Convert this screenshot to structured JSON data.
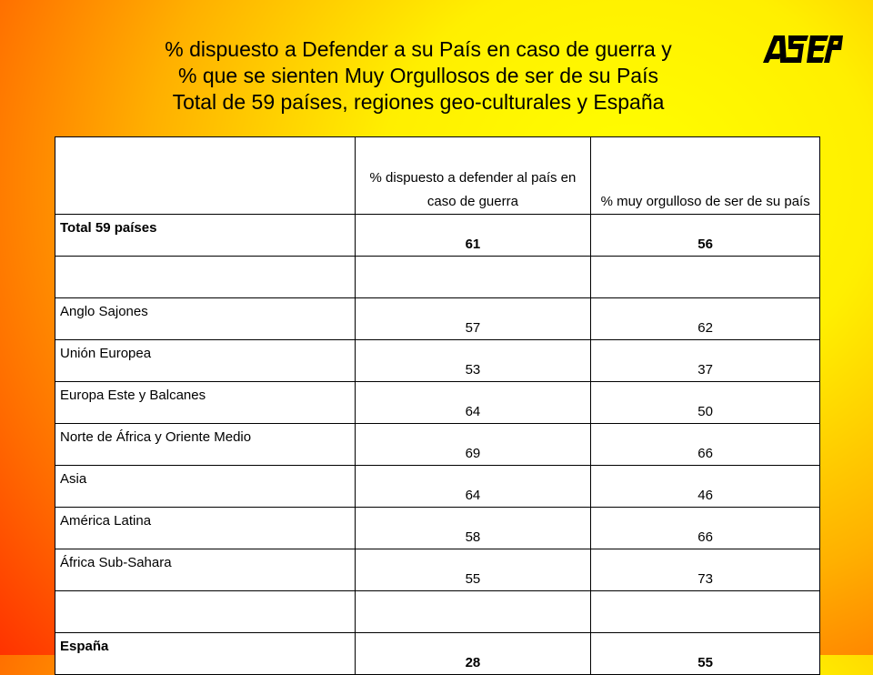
{
  "title": {
    "line1": "% dispuesto a Defender a su País en caso de guerra y",
    "line2": "% que se sienten Muy Orgullosos de ser de su País",
    "line3": "Total de 59 países, regiones geo-culturales y España"
  },
  "logo": {
    "text": "ASEP"
  },
  "table": {
    "headers": {
      "col1": "",
      "col2": "% dispuesto a defender al país en caso de guerra",
      "col3": "% muy orgulloso de ser de su país"
    },
    "rows": [
      {
        "label": "Total 59 países",
        "defend": "61",
        "proud": "56",
        "bold": true
      },
      {
        "label": "",
        "defend": "",
        "proud": "",
        "blank": true
      },
      {
        "label": "Anglo Sajones",
        "defend": "57",
        "proud": "62"
      },
      {
        "label": "Unión Europea",
        "defend": "53",
        "proud": "37"
      },
      {
        "label": "Europa Este y Balcanes",
        "defend": "64",
        "proud": "50"
      },
      {
        "label": "Norte de África y Oriente Medio",
        "defend": "69",
        "proud": "66"
      },
      {
        "label": "Asia",
        "defend": "64",
        "proud": "46"
      },
      {
        "label": "América Latina",
        "defend": "58",
        "proud": "66"
      },
      {
        "label": "África Sub-Sahara",
        "defend": "55",
        "proud": "73"
      },
      {
        "label": "",
        "defend": "",
        "proud": "",
        "blank": true
      },
      {
        "label": "España",
        "defend": "28",
        "proud": "55",
        "bold": true
      }
    ]
  }
}
